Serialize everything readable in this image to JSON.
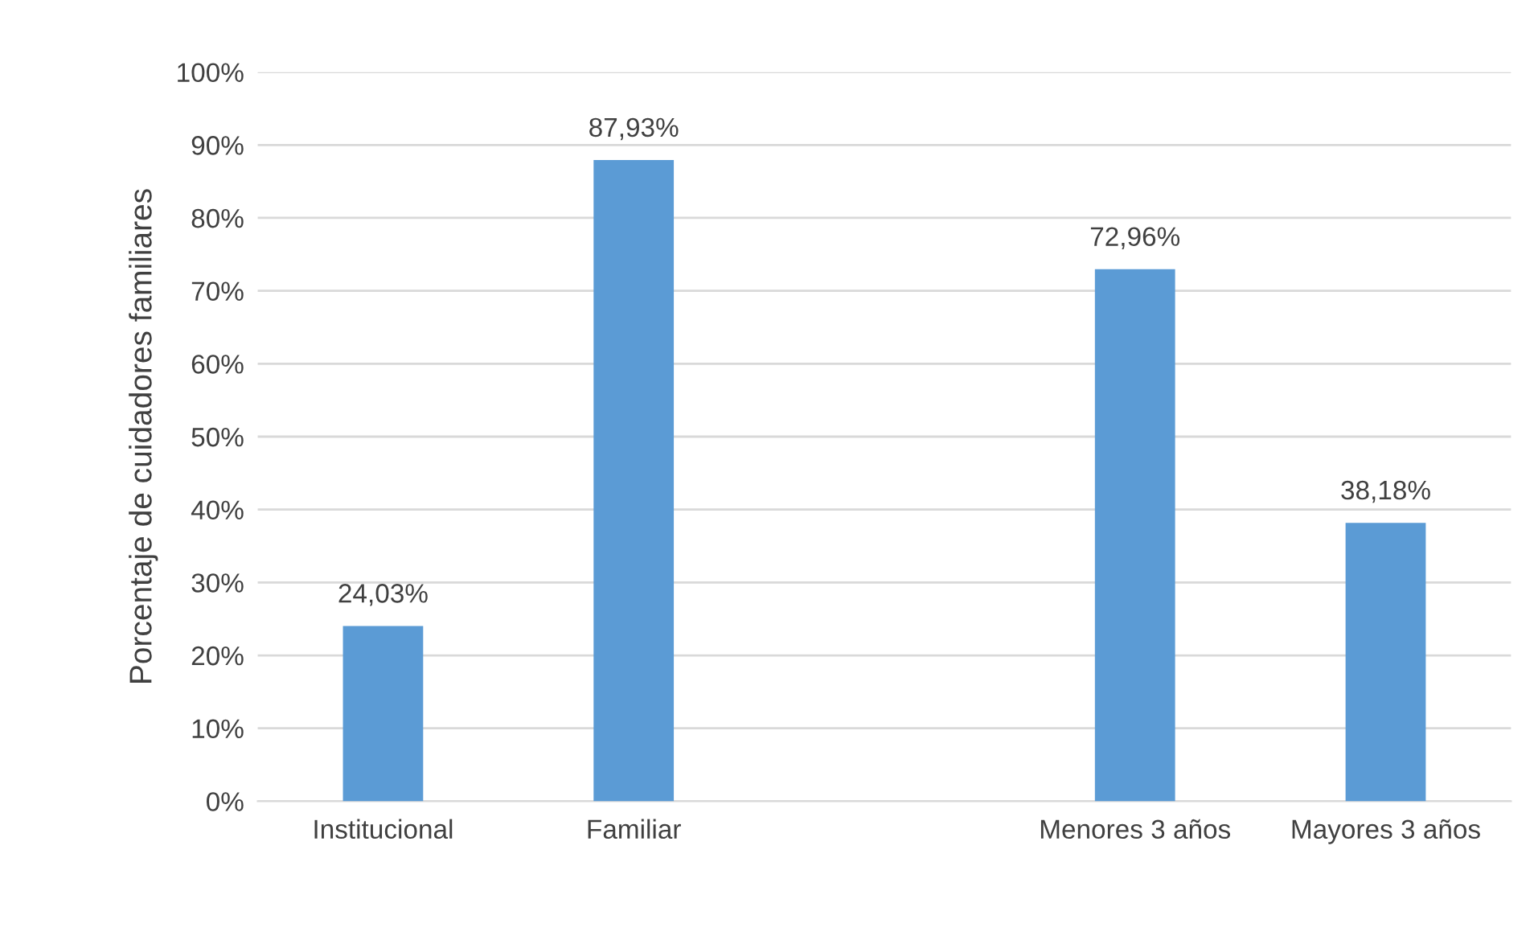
{
  "chart_data": {
    "type": "bar",
    "ylabel": "Porcentaje de cuidadores familiares",
    "categories": [
      "Institucional",
      "Familiar",
      null,
      "Menores 3 años",
      "Mayores 3 años"
    ],
    "values": [
      24.03,
      87.93,
      null,
      72.96,
      38.18
    ],
    "value_labels": [
      "24,03%",
      "87,93%",
      null,
      "72,96%",
      "38,18%"
    ],
    "color": "#5b9bd5",
    "ylim": [
      0,
      100
    ],
    "yticks": [
      {
        "value": 0,
        "label": "0%"
      },
      {
        "value": 10,
        "label": "10%"
      },
      {
        "value": 20,
        "label": "20%"
      },
      {
        "value": 30,
        "label": "30%"
      },
      {
        "value": 40,
        "label": "40%"
      },
      {
        "value": 50,
        "label": "50%"
      },
      {
        "value": 60,
        "label": "60%"
      },
      {
        "value": 70,
        "label": "70%"
      },
      {
        "value": 80,
        "label": "80%"
      },
      {
        "value": 90,
        "label": "90%"
      },
      {
        "value": 100,
        "label": "100%"
      }
    ],
    "grid": "y",
    "legend": false
  }
}
